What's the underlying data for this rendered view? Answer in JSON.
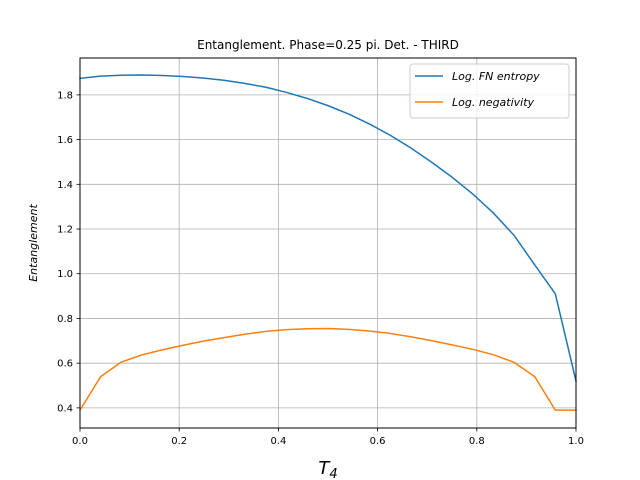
{
  "chart_data": {
    "type": "line",
    "title": "Entanglement. Phase=0.25 pi. Det. - THIRD",
    "xlabel_main": "T",
    "xlabel_sub": "4",
    "ylabel": "Entanglement",
    "xlim": [
      0,
      1
    ],
    "ylim": [
      0.31,
      1.965
    ],
    "xticks": [
      0.0,
      0.2,
      0.4,
      0.6,
      0.8,
      1.0
    ],
    "xtick_labels": [
      "0.0",
      "0.2",
      "0.4",
      "0.6",
      "0.8",
      "1.0"
    ],
    "yticks": [
      0.4,
      0.6,
      0.8,
      1.0,
      1.2,
      1.4,
      1.6,
      1.8
    ],
    "ytick_labels": [
      "0.4",
      "0.6",
      "0.8",
      "1.0",
      "1.2",
      "1.4",
      "1.6",
      "1.8"
    ],
    "grid": true,
    "legend_position": "upper right",
    "x": [
      0,
      0.0417,
      0.0833,
      0.125,
      0.1667,
      0.2083,
      0.25,
      0.2917,
      0.3333,
      0.375,
      0.4167,
      0.4583,
      0.5,
      0.5417,
      0.5833,
      0.625,
      0.6667,
      0.7083,
      0.75,
      0.7917,
      0.8333,
      0.875,
      0.9167,
      0.9583,
      1.0
    ],
    "series": [
      {
        "name": "Log. FN entropy",
        "color": "#1f77b4",
        "values": [
          1.874,
          1.884,
          1.888,
          1.889,
          1.887,
          1.882,
          1.875,
          1.865,
          1.851,
          1.834,
          1.811,
          1.784,
          1.752,
          1.714,
          1.67,
          1.62,
          1.563,
          1.5,
          1.432,
          1.357,
          1.272,
          1.172,
          1.04,
          0.91,
          0.52
        ]
      },
      {
        "name": "Log. negativity",
        "color": "#ff7f0e",
        "values": [
          0.39,
          0.54,
          0.605,
          0.637,
          0.66,
          0.68,
          0.699,
          0.715,
          0.73,
          0.742,
          0.75,
          0.754,
          0.755,
          0.751,
          0.744,
          0.733,
          0.718,
          0.701,
          0.682,
          0.662,
          0.638,
          0.604,
          0.54,
          0.39,
          0.39
        ]
      }
    ],
    "legend": [
      {
        "label": "Log. FN entropy",
        "color": "#1f77b4"
      },
      {
        "label": "Log. negativity",
        "color": "#ff7f0e"
      }
    ]
  }
}
